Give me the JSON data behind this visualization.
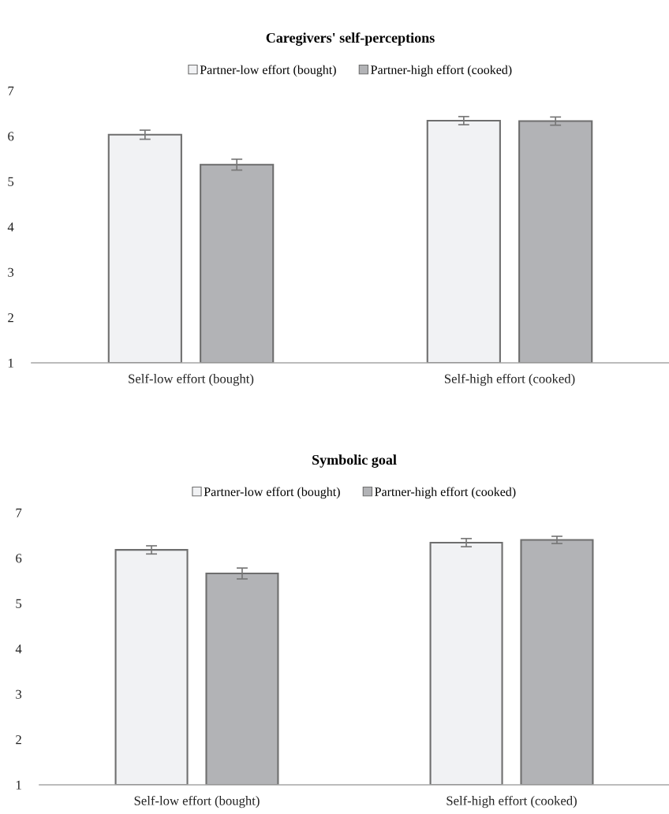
{
  "chart_data": [
    {
      "type": "bar",
      "title": "Caregivers' self-perceptions",
      "categories": [
        "Self-low effort (bought)",
        "Self-high effort (cooked)"
      ],
      "series": [
        {
          "name": "Partner-low effort (bought)",
          "color": "#f1f2f4",
          "values": [
            6.03,
            6.34
          ],
          "errors": [
            0.1,
            0.09
          ]
        },
        {
          "name": "Partner-high effort (cooked)",
          "color": "#b2b3b6",
          "values": [
            5.37,
            6.33
          ],
          "errors": [
            0.12,
            0.09
          ]
        }
      ],
      "ylim": [
        1,
        7
      ],
      "yticks": [
        1,
        2,
        3,
        4,
        5,
        6,
        7
      ],
      "grid": false,
      "legend": "top"
    },
    {
      "type": "bar",
      "title": "Symbolic goal",
      "categories": [
        "Self-low effort (bought)",
        "Self-high effort (cooked)"
      ],
      "series": [
        {
          "name": "Partner-low effort (bought)",
          "color": "#f1f2f4",
          "values": [
            6.18,
            6.34
          ],
          "errors": [
            0.09,
            0.09
          ]
        },
        {
          "name": "Partner-high effort (cooked)",
          "color": "#b2b3b6",
          "values": [
            5.66,
            6.4
          ],
          "errors": [
            0.12,
            0.08
          ]
        }
      ],
      "ylim": [
        1,
        7
      ],
      "yticks": [
        1,
        2,
        3,
        4,
        5,
        6,
        7
      ],
      "grid": false,
      "legend": "top"
    }
  ]
}
